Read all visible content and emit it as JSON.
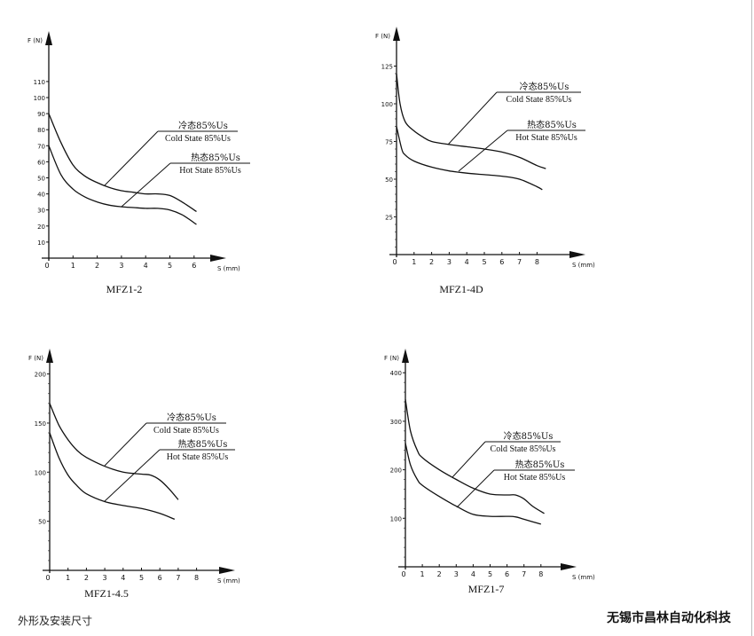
{
  "footer": {
    "left_text": "外形及安装尺寸",
    "right_text": "无锡市昌林自动化科技"
  },
  "chart_data": [
    {
      "type": "line",
      "title": "MFZ1-2",
      "ylabel": "F (N)",
      "xlabel": "S (mm)",
      "xlim": [
        0,
        6
      ],
      "ylim": [
        0,
        110
      ],
      "xticks": [
        0,
        1,
        2,
        3,
        4,
        5,
        6
      ],
      "yticks": [
        10,
        20,
        30,
        40,
        50,
        60,
        70,
        80,
        90,
        100,
        110
      ],
      "series": [
        {
          "name_cn": "冷态85%Us",
          "name": "Cold State 85%Us",
          "x": [
            0,
            0.5,
            1,
            1.5,
            2,
            2.5,
            3,
            3.5,
            4,
            4.5,
            5,
            5.5,
            6.1
          ],
          "y": [
            90,
            72,
            58,
            51,
            47,
            44,
            42,
            41,
            40,
            40,
            39,
            35,
            29
          ]
        },
        {
          "name_cn": "热态85%Us",
          "name": "Hot State 85%Us",
          "x": [
            0,
            0.5,
            1,
            1.5,
            2,
            2.5,
            3,
            3.5,
            4,
            4.5,
            5,
            5.5,
            6.1
          ],
          "y": [
            70,
            52,
            43,
            38,
            35,
            33,
            32,
            31.5,
            31,
            31,
            30,
            27,
            21
          ]
        }
      ]
    },
    {
      "type": "line",
      "title": "MFZ1-4D",
      "ylabel": "F (N)",
      "xlabel": "S (mm)",
      "xlim": [
        0,
        8
      ],
      "ylim": [
        0,
        125
      ],
      "xticks": [
        0,
        1,
        2,
        3,
        4,
        5,
        6,
        7,
        8
      ],
      "yticks": [
        25,
        50,
        75,
        100,
        125
      ],
      "series": [
        {
          "name_cn": "冷态85%Us",
          "name": "Cold State 85%Us",
          "x": [
            0,
            0.2,
            0.5,
            1,
            1.5,
            2,
            3,
            4,
            5,
            6,
            7,
            8,
            8.5
          ],
          "y": [
            120,
            100,
            88,
            82,
            78,
            75,
            73,
            71.5,
            70,
            68,
            64.5,
            59,
            57
          ]
        },
        {
          "name_cn": "热态85%Us",
          "name": "Hot State 85%Us",
          "x": [
            0,
            0.3,
            0.5,
            1,
            2,
            3,
            4,
            5,
            6,
            7,
            8,
            8.3
          ],
          "y": [
            85,
            70,
            66,
            62,
            58,
            55.5,
            54,
            53,
            52,
            50,
            45,
            43
          ]
        }
      ]
    },
    {
      "type": "line",
      "title": "MFZ1-4.5",
      "ylabel": "F (N)",
      "xlabel": "S (mm)",
      "xlim": [
        0,
        8
      ],
      "ylim": [
        0,
        200
      ],
      "xticks": [
        0,
        1,
        2,
        3,
        4,
        5,
        6,
        7,
        8
      ],
      "yticks": [
        50,
        100,
        150,
        200
      ],
      "series": [
        {
          "name_cn": "冷态85%Us",
          "name": "Cold State 85%Us",
          "x": [
            0,
            0.5,
            1,
            1.5,
            2,
            3,
            4,
            5,
            5.5,
            6,
            6.5,
            7
          ],
          "y": [
            170,
            148,
            133,
            122,
            115,
            106,
            100,
            98,
            97,
            92,
            83,
            72
          ]
        },
        {
          "name_cn": "热态85%Us",
          "name": "Hot State 85%Us",
          "x": [
            0,
            0.5,
            1,
            1.5,
            2,
            3,
            4,
            5,
            6,
            6.8
          ],
          "y": [
            140,
            115,
            97,
            86,
            78,
            70,
            66,
            63,
            58,
            52
          ]
        }
      ]
    },
    {
      "type": "line",
      "title": "MFZ1-7",
      "ylabel": "F (N)",
      "xlabel": "S (mm)",
      "xlim": [
        0,
        8
      ],
      "ylim": [
        0,
        400
      ],
      "xticks": [
        0,
        1,
        2,
        3,
        4,
        5,
        6,
        7,
        8
      ],
      "yticks": [
        100,
        200,
        300,
        400
      ],
      "series": [
        {
          "name_cn": "冷态85%Us",
          "name": "Cold State 85%Us",
          "x": [
            0,
            0.3,
            0.7,
            1,
            2,
            3,
            4,
            5,
            6,
            6.5,
            7,
            7.5,
            8.2
          ],
          "y": [
            345,
            280,
            240,
            225,
            200,
            180,
            162,
            150,
            148,
            148,
            140,
            125,
            110
          ]
        },
        {
          "name_cn": "热态85%Us",
          "name": "Hot State 85%Us",
          "x": [
            0,
            0.3,
            0.7,
            1,
            2,
            3,
            4,
            5,
            6,
            6.5,
            7,
            8
          ],
          "y": [
            255,
            210,
            180,
            168,
            145,
            125,
            108,
            104,
            104,
            103,
            98,
            88
          ]
        }
      ]
    }
  ]
}
